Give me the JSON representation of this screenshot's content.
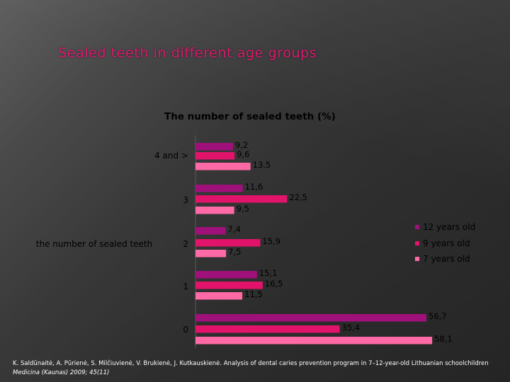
{
  "slide": {
    "title": "Sealed teeth in different age groups",
    "citation_authors": "K. Saldūnaitė, A. Pūrienė, S. Milčiuvienė, V. Brukienė, J. Kutkauskienė. Analysis of dental caries prevention program in 7–12-year-old Lithuanian schoolchildren ",
    "citation_journal": "Medicina (Kaunas) 2009; 45(11)"
  },
  "colors": {
    "series_12": "#a0107a",
    "series_9": "#e2136a",
    "series_7": "#ff6aa6",
    "title": "#d91b6f"
  },
  "chart_data": {
    "type": "bar",
    "orientation": "horizontal",
    "title": "The number of sealed teeth (%)",
    "ylabel": "the number of sealed teeth",
    "xlabel": "",
    "xlim": [
      0,
      60
    ],
    "grid": false,
    "legend_position": "right",
    "categories": [
      "4 and >",
      "3",
      "2",
      "1",
      "0"
    ],
    "series": [
      {
        "name": "12 years old",
        "values": [
          9.2,
          11.6,
          7.4,
          15.1,
          56.7
        ],
        "labels": [
          "9,2",
          "11,6",
          "7,4",
          "15,1",
          "56,7"
        ]
      },
      {
        "name": "9 years old",
        "values": [
          9.6,
          22.5,
          15.9,
          16.5,
          35.4
        ],
        "labels": [
          "9,6",
          "22,5",
          "15,9",
          "16,5",
          "35,4"
        ]
      },
      {
        "name": "7 years old",
        "values": [
          13.5,
          9.5,
          7.5,
          11.5,
          58.1
        ],
        "labels": [
          "13,5",
          "9,5",
          "7,5",
          "11,5",
          "58,1"
        ]
      }
    ]
  }
}
